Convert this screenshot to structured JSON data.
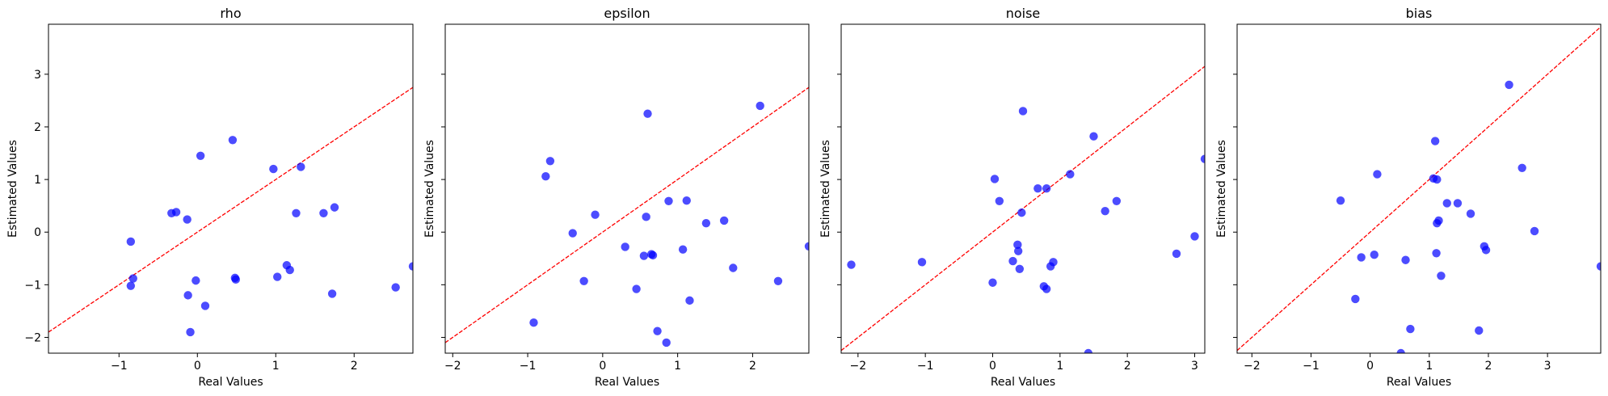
{
  "figure": {
    "ylabel_shared": "Estimated Values",
    "xlabel_shared": "Real Values",
    "point_color": "#0000ff",
    "line_color": "#ff0000"
  },
  "chart_data": [
    {
      "type": "scatter",
      "title": "rho",
      "xlabel": "Real Values",
      "ylabel": "Estimated Values",
      "xlim": [
        -1.9,
        2.75
      ],
      "ylim": [
        -2.3,
        3.95
      ],
      "xticks": [
        -1,
        0,
        1,
        2
      ],
      "yticks": [
        -2,
        -1,
        0,
        1,
        2,
        3
      ],
      "ytick_labels_visible": true,
      "reference_line": "y = x",
      "points": [
        [
          -0.85,
          -0.18
        ],
        [
          -0.85,
          -1.02
        ],
        [
          -0.82,
          -0.88
        ],
        [
          -0.33,
          0.36
        ],
        [
          -0.27,
          0.38
        ],
        [
          -0.13,
          0.24
        ],
        [
          -0.12,
          -1.2
        ],
        [
          -0.09,
          -1.9
        ],
        [
          -0.02,
          -0.92
        ],
        [
          0.04,
          1.45
        ],
        [
          0.1,
          -1.4
        ],
        [
          0.45,
          1.75
        ],
        [
          0.48,
          -0.87
        ],
        [
          0.49,
          -0.9
        ],
        [
          0.97,
          1.2
        ],
        [
          1.02,
          -0.85
        ],
        [
          1.14,
          -0.63
        ],
        [
          1.18,
          -0.72
        ],
        [
          1.26,
          0.36
        ],
        [
          1.32,
          1.24
        ],
        [
          1.61,
          0.36
        ],
        [
          1.72,
          -1.17
        ],
        [
          1.75,
          0.47
        ],
        [
          2.53,
          -1.05
        ],
        [
          2.75,
          -0.65
        ]
      ]
    },
    {
      "type": "scatter",
      "title": "epsilon",
      "xlabel": "Real Values",
      "ylabel": "Estimated Values",
      "xlim": [
        -2.1,
        2.75
      ],
      "ylim": [
        -2.3,
        3.95
      ],
      "xticks": [
        -2,
        -1,
        0,
        1,
        2
      ],
      "yticks": [
        -2,
        -1,
        0,
        1,
        2,
        3
      ],
      "ytick_labels_visible": false,
      "reference_line": "y = x",
      "points": [
        [
          -0.92,
          -1.72
        ],
        [
          -0.76,
          1.06
        ],
        [
          -0.7,
          1.35
        ],
        [
          -0.4,
          -0.02
        ],
        [
          -0.25,
          -0.93
        ],
        [
          -0.1,
          0.33
        ],
        [
          0.3,
          -0.28
        ],
        [
          0.45,
          -1.08
        ],
        [
          0.55,
          -0.45
        ],
        [
          0.58,
          0.29
        ],
        [
          0.6,
          2.25
        ],
        [
          0.65,
          -0.42
        ],
        [
          0.67,
          -0.44
        ],
        [
          0.73,
          -1.88
        ],
        [
          0.85,
          -2.1
        ],
        [
          0.88,
          0.59
        ],
        [
          1.07,
          -0.33
        ],
        [
          1.12,
          0.6
        ],
        [
          1.16,
          -1.3
        ],
        [
          1.38,
          0.17
        ],
        [
          1.62,
          0.22
        ],
        [
          1.74,
          -0.68
        ],
        [
          2.1,
          2.4
        ],
        [
          2.34,
          -0.93
        ],
        [
          2.75,
          -0.27
        ]
      ]
    },
    {
      "type": "scatter",
      "title": "noise",
      "xlabel": "Real Values",
      "ylabel": "Estimated Values",
      "xlim": [
        -2.25,
        3.15
      ],
      "ylim": [
        -2.3,
        3.95
      ],
      "xticks": [
        -2,
        -1,
        0,
        1,
        2,
        3
      ],
      "yticks": [
        -2,
        -1,
        0,
        1,
        2,
        3
      ],
      "ytick_labels_visible": false,
      "reference_line": "y = x",
      "points": [
        [
          -2.1,
          -0.62
        ],
        [
          -1.05,
          -0.57
        ],
        [
          0.0,
          -0.96
        ],
        [
          0.03,
          1.01
        ],
        [
          0.1,
          0.59
        ],
        [
          0.3,
          -0.55
        ],
        [
          0.37,
          -0.24
        ],
        [
          0.38,
          -0.36
        ],
        [
          0.4,
          -0.7
        ],
        [
          0.43,
          0.37
        ],
        [
          0.45,
          2.3
        ],
        [
          0.67,
          0.83
        ],
        [
          0.76,
          -1.03
        ],
        [
          0.8,
          -1.08
        ],
        [
          0.8,
          0.83
        ],
        [
          0.86,
          -0.65
        ],
        [
          0.9,
          -0.57
        ],
        [
          1.15,
          1.1
        ],
        [
          1.42,
          -2.3
        ],
        [
          1.5,
          1.82
        ],
        [
          1.67,
          0.4
        ],
        [
          1.84,
          0.59
        ],
        [
          2.73,
          -0.41
        ],
        [
          3.0,
          -0.08
        ],
        [
          3.15,
          1.39
        ]
      ]
    },
    {
      "type": "scatter",
      "title": "bias",
      "xlabel": "Real Values",
      "ylabel": "Estimated Values",
      "xlim": [
        -2.25,
        3.9
      ],
      "ylim": [
        -2.3,
        3.95
      ],
      "xticks": [
        -2,
        -1,
        0,
        1,
        2,
        3
      ],
      "yticks": [
        -2,
        -1,
        0,
        1,
        2,
        3
      ],
      "ytick_labels_visible": false,
      "reference_line": "y = x",
      "points": [
        [
          -0.5,
          0.6
        ],
        [
          -0.25,
          -1.27
        ],
        [
          -0.15,
          -0.48
        ],
        [
          0.07,
          -0.43
        ],
        [
          0.12,
          1.1
        ],
        [
          0.52,
          -2.3
        ],
        [
          0.6,
          -0.53
        ],
        [
          0.68,
          -1.84
        ],
        [
          1.07,
          1.02
        ],
        [
          1.1,
          1.73
        ],
        [
          1.12,
          -0.4
        ],
        [
          1.13,
          1.0
        ],
        [
          1.13,
          0.17
        ],
        [
          1.16,
          0.22
        ],
        [
          1.2,
          -0.83
        ],
        [
          1.3,
          0.55
        ],
        [
          1.48,
          0.55
        ],
        [
          1.7,
          0.35
        ],
        [
          1.84,
          -1.87
        ],
        [
          1.93,
          -0.27
        ],
        [
          1.96,
          -0.34
        ],
        [
          2.35,
          2.8
        ],
        [
          2.57,
          1.22
        ],
        [
          2.78,
          0.02
        ],
        [
          3.9,
          -0.65
        ]
      ]
    }
  ]
}
